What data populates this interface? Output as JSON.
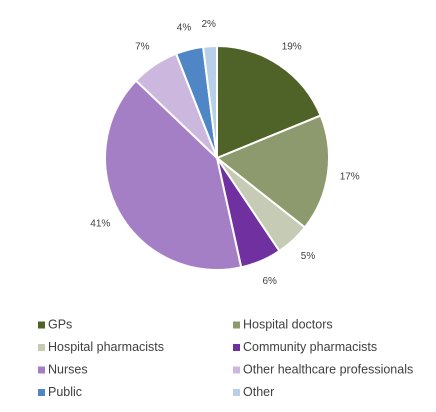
{
  "chart_data": {
    "type": "pie",
    "title": "",
    "legend_position": "bottom",
    "start_angle_deg": 0,
    "direction": "clockwise",
    "slices": [
      {
        "label": "GPs",
        "value": 19,
        "display": "19%",
        "color": "#4f6228"
      },
      {
        "label": "Hospital doctors",
        "value": 17,
        "display": "17%",
        "color": "#8c9a6d"
      },
      {
        "label": "Hospital pharmacists",
        "value": 5,
        "display": "5%",
        "color": "#c6cbb5"
      },
      {
        "label": "Community pharmacists",
        "value": 6,
        "display": "6%",
        "color": "#7030a0"
      },
      {
        "label": "Nurses",
        "value": 41,
        "display": "41%",
        "color": "#a57fc5"
      },
      {
        "label": "Other healthcare professionals",
        "value": 7,
        "display": "7%",
        "color": "#ccb8de"
      },
      {
        "label": "Public",
        "value": 4,
        "display": "4%",
        "color": "#4f86c6"
      },
      {
        "label": "Other",
        "value": 2,
        "display": "2%",
        "color": "#b7cfe8"
      }
    ]
  }
}
